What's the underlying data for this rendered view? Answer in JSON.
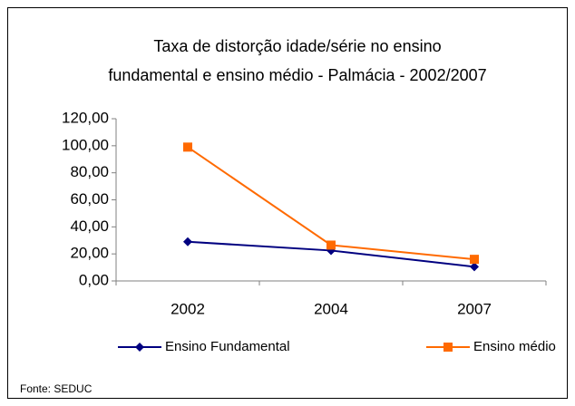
{
  "chart_data": {
    "type": "line",
    "title": [
      "Taxa de distorção idade/série no ensino",
      "fundamental e ensino médio - Palmácia  -  2002/2007"
    ],
    "categories": [
      "2002",
      "2004",
      "2007"
    ],
    "series": [
      {
        "name": "Ensino Fundamental",
        "color": "#000080",
        "marker": "diamond",
        "values": [
          29,
          22.5,
          10.5
        ]
      },
      {
        "name": "Ensino médio",
        "color": "#ff6a00",
        "marker": "square",
        "values": [
          99,
          26.5,
          16
        ]
      }
    ],
    "ylim": [
      0,
      120
    ],
    "yticks": [
      {
        "value": 0,
        "label": "0,00"
      },
      {
        "value": 20,
        "label": "20,00"
      },
      {
        "value": 40,
        "label": "40,00"
      },
      {
        "value": 60,
        "label": "60,00"
      },
      {
        "value": 80,
        "label": "80,00"
      },
      {
        "value": 100,
        "label": "100,00"
      },
      {
        "value": 120,
        "label": "120,00"
      }
    ],
    "grid": false,
    "legend": "bottom",
    "source": "Fonte: SEDUC"
  }
}
